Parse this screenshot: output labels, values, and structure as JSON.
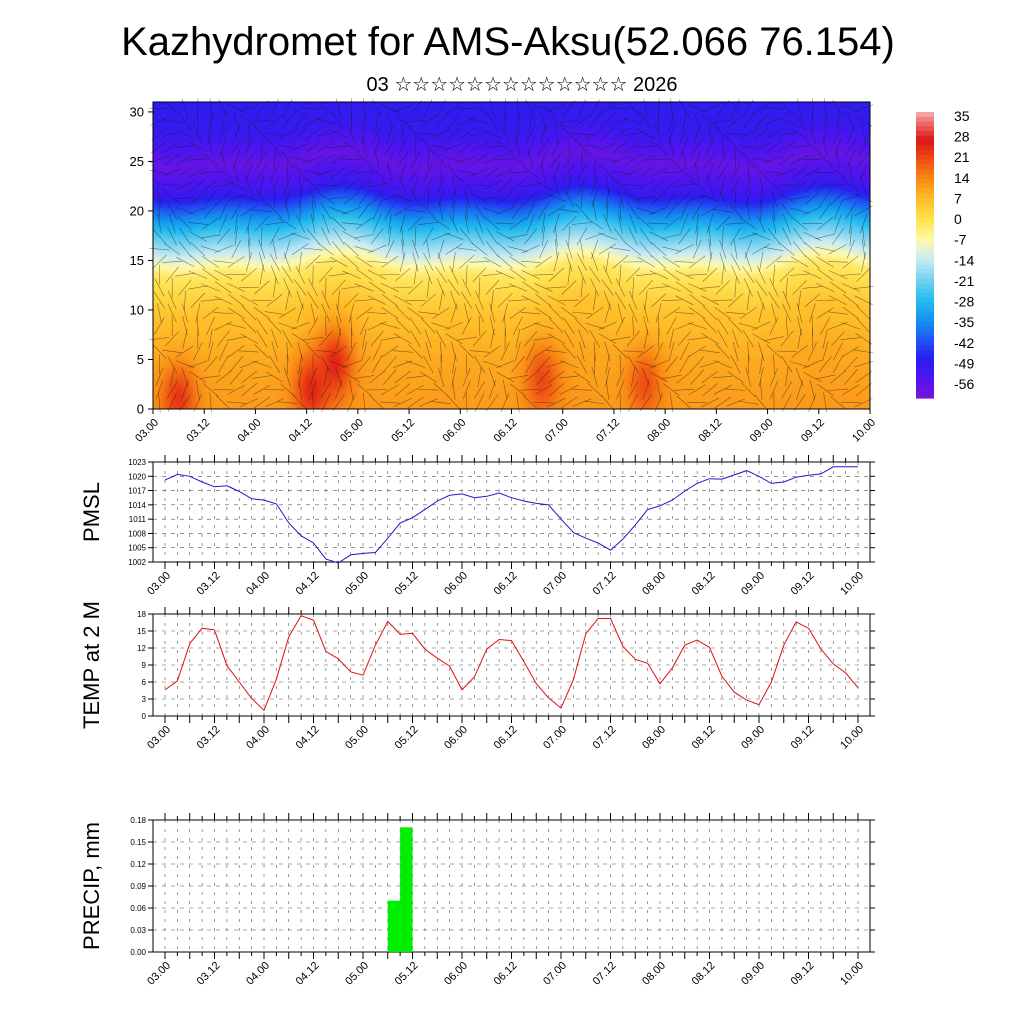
{
  "title": "Kazhydromet for AMS-Aksu(52.066 76.154)",
  "subtitle": "03 ☆☆☆☆☆☆☆☆☆☆☆☆☆ 2026",
  "chart_data": [
    {
      "id": "cross-section",
      "type": "heatmap",
      "description_text": "",
      "y_ticks": [
        0,
        5,
        10,
        15,
        20,
        25,
        30
      ],
      "ylim": [
        0,
        31
      ],
      "x_ticks": [
        "03.00",
        "03.12",
        "04.00",
        "04.12",
        "05.00",
        "05.12",
        "06.00",
        "06.12",
        "07.00",
        "07.12",
        "08.00",
        "08.12",
        "09.00",
        "09.12",
        "10.00"
      ],
      "colorbar": {
        "labels": [
          "35",
          "28",
          "21",
          "14",
          "7",
          "0",
          "-7",
          "-14",
          "-21",
          "-28",
          "-35",
          "-42",
          "-49",
          "-56"
        ],
        "range": [
          -63,
          38
        ]
      },
      "temperature_by_level": [
        {
          "level": 0,
          "value": 12
        },
        {
          "level": 5,
          "value": 10
        },
        {
          "level": 10,
          "value": 6
        },
        {
          "level": 14,
          "value": -2
        },
        {
          "level": 16,
          "value": -14
        },
        {
          "level": 18,
          "value": -25
        },
        {
          "level": 20,
          "value": -38
        },
        {
          "level": 22,
          "value": -52
        },
        {
          "level": 25,
          "value": -60
        },
        {
          "level": 28,
          "value": -52
        },
        {
          "level": 31,
          "value": -50
        }
      ],
      "hot_spots": [
        {
          "x": 0.5,
          "level": 1,
          "value": 24
        },
        {
          "x": 3.1,
          "level": 2,
          "value": 26
        },
        {
          "x": 3.55,
          "level": 4.5,
          "value": 26
        },
        {
          "x": 7.6,
          "level": 3,
          "value": 22
        },
        {
          "x": 9.6,
          "level": 2.5,
          "value": 21
        }
      ]
    },
    {
      "id": "pmsl",
      "type": "line",
      "ylabel": "PMSL",
      "y_ticks": [
        1002,
        1005,
        1008,
        1011,
        1014,
        1017,
        1020,
        1023
      ],
      "ylim": [
        1002,
        1023
      ],
      "x_ticks": [
        "03.00",
        "03.12",
        "04.00",
        "04.12",
        "05.00",
        "05.12",
        "06.00",
        "06.12",
        "07.00",
        "07.12",
        "08.00",
        "08.12",
        "09.00",
        "09.12",
        "10.00"
      ],
      "color": "#1a1acc",
      "series": [
        {
          "x": [
            0,
            0.25,
            0.5,
            0.75,
            1,
            1.25,
            1.5,
            1.75,
            2,
            2.25,
            2.5,
            2.75,
            3,
            3.25,
            3.5,
            3.75,
            4,
            4.25,
            4.5,
            4.75,
            5,
            5.25,
            5.5,
            5.75,
            6,
            6.25,
            6.5,
            6.75,
            7,
            7.25,
            7.5,
            7.75,
            8,
            8.25,
            8.5,
            8.75,
            9,
            9.25,
            9.5,
            9.75,
            10,
            10.25,
            10.5,
            10.75,
            11,
            11.25,
            11.5,
            11.75,
            12,
            12.25,
            12.5,
            12.75,
            13,
            13.25,
            13.5,
            13.75,
            14
          ],
          "values": [
            1019.2,
            1020.4,
            1020.0,
            1018.8,
            1017.8,
            1018.0,
            1016.8,
            1015.3,
            1015.0,
            1014.2,
            1010.2,
            1007.5,
            1006.0,
            1002.6,
            1001.8,
            1003.5,
            1003.8,
            1004.0,
            1007.0,
            1010.2,
            1011.3,
            1013.0,
            1014.8,
            1016.0,
            1016.3,
            1015.5,
            1015.8,
            1016.5,
            1015.5,
            1014.8,
            1014.3,
            1014.0,
            1011.0,
            1008.2,
            1007.0,
            1006.0,
            1004.5,
            1006.8,
            1009.8,
            1013.0,
            1013.8,
            1015.0,
            1016.9,
            1018.5,
            1019.5,
            1019.4,
            1020.3,
            1021.2,
            1020.0,
            1018.5,
            1018.8,
            1019.8,
            1020.2,
            1020.5,
            1022.0,
            1022.0,
            1022.0
          ]
        }
      ]
    },
    {
      "id": "temp2m",
      "type": "line",
      "ylabel": "TEMP at 2 M",
      "y_ticks": [
        0,
        3,
        6,
        9,
        12,
        15,
        18
      ],
      "ylim": [
        0,
        18
      ],
      "x_ticks": [
        "03.00",
        "03.12",
        "04.00",
        "04.12",
        "05.00",
        "05.12",
        "06.00",
        "06.12",
        "07.00",
        "07.12",
        "08.00",
        "08.12",
        "09.00",
        "09.12",
        "10.00"
      ],
      "color": "#dd1111",
      "series": [
        {
          "x": [
            0,
            0.25,
            0.5,
            0.75,
            1,
            1.25,
            1.5,
            1.75,
            2,
            2.25,
            2.5,
            2.75,
            3,
            3.25,
            3.5,
            3.75,
            4,
            4.25,
            4.5,
            4.75,
            5,
            5.25,
            5.5,
            5.75,
            6,
            6.25,
            6.5,
            6.75,
            7,
            7.25,
            7.5,
            7.75,
            8,
            8.25,
            8.5,
            8.75,
            9,
            9.25,
            9.5,
            9.75,
            10,
            10.25,
            10.5,
            10.75,
            11,
            11.25,
            11.5,
            11.75,
            12,
            12.25,
            12.5,
            12.75,
            13,
            13.25,
            13.5,
            13.75,
            14
          ],
          "values": [
            4.6,
            6.2,
            12.8,
            15.5,
            15.2,
            8.9,
            6.0,
            3.1,
            1.0,
            6.5,
            14.0,
            17.7,
            16.9,
            11.4,
            10.1,
            7.8,
            7.2,
            12.5,
            16.7,
            14.4,
            14.6,
            11.8,
            10.2,
            8.8,
            4.6,
            6.9,
            11.8,
            13.5,
            13.3,
            9.6,
            5.7,
            3.2,
            1.4,
            6.4,
            14.5,
            17.2,
            17.2,
            12.3,
            10.0,
            9.3,
            5.7,
            8.5,
            12.5,
            13.4,
            12.1,
            7.0,
            4.2,
            2.8,
            2.0,
            6.0,
            12.5,
            16.6,
            15.5,
            11.8,
            9.2,
            7.6,
            5.0
          ]
        }
      ]
    },
    {
      "id": "precip",
      "type": "bar",
      "ylabel": "PRECIP, mm",
      "y_ticks": [
        "0.00",
        "0.03",
        "0.06",
        "0.09",
        "0.12",
        "0.15",
        "0.18"
      ],
      "ylim": [
        0,
        0.18
      ],
      "x_ticks": [
        "03.00",
        "03.12",
        "04.00",
        "04.12",
        "05.00",
        "05.12",
        "06.00",
        "06.12",
        "07.00",
        "07.12",
        "08.00",
        "08.12",
        "09.00",
        "09.12",
        "10.00"
      ],
      "color": "#00ee00",
      "bars": [
        {
          "x_start": 4.5,
          "x_end": 4.75,
          "value": 0.07
        },
        {
          "x_start": 4.75,
          "x_end": 5.0,
          "value": 0.17
        }
      ]
    }
  ]
}
